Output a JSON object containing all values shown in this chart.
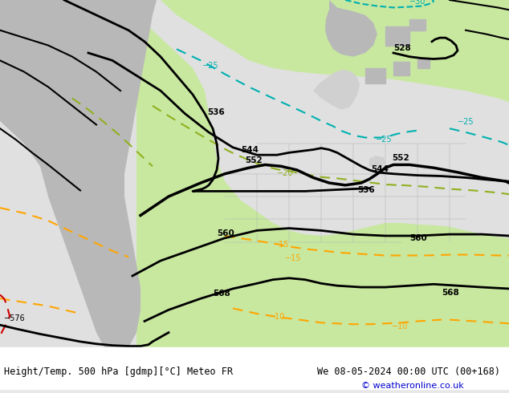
{
  "title_bottom": "Height/Temp. 500 hPa [gdmp][°C] Meteo FR",
  "title_right": "We 08-05-2024 00:00 UTC (00+168)",
  "copyright": "© weatheronline.co.uk",
  "bg_color": "#e8e8e8",
  "land_color": "#c8e6a0",
  "ocean_color": "#e0e0e0",
  "mountain_color": "#b0b0b0",
  "contour_color_height": "#000000",
  "contour_color_temp_warm": "#ffa500",
  "contour_color_temp_cold": "#00b0b0",
  "contour_color_temp_cold2": "#80c000",
  "contour_color_red": "#ff0000",
  "font_size_label": 9,
  "font_size_bottom": 9,
  "dpi": 100,
  "fig_width": 6.34,
  "fig_height": 4.9
}
